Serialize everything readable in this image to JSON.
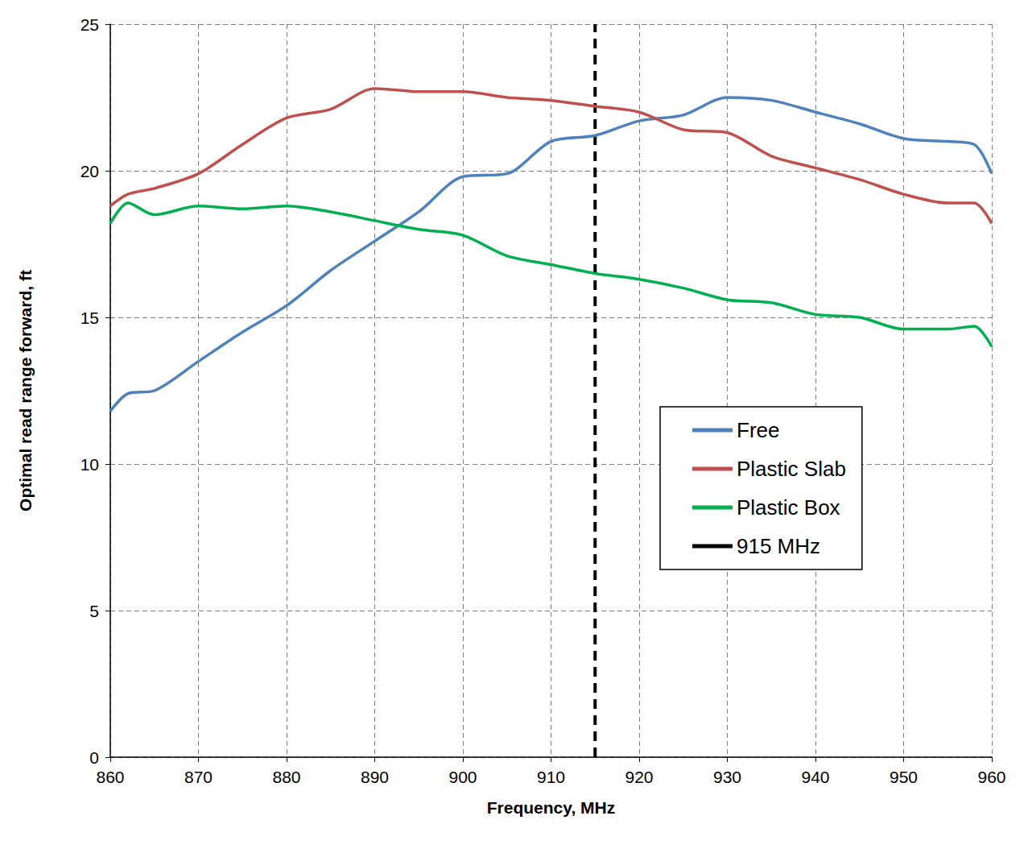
{
  "chart_data": {
    "type": "line",
    "x_label": "Frequency, MHz",
    "y_label": "Optimal read range forward, ft",
    "xlim": [
      860,
      960
    ],
    "xticks": [
      860,
      870,
      880,
      890,
      900,
      910,
      920,
      930,
      940,
      950,
      960
    ],
    "ylim": [
      0,
      25
    ],
    "yticks": [
      0,
      5,
      10,
      15,
      20,
      25
    ],
    "grid": true,
    "legend": "right",
    "series": [
      {
        "name": "Free",
        "color": "#4f81bd",
        "line_style": "solid",
        "x": [
          860,
          862,
          865,
          870,
          875,
          880,
          885,
          890,
          895,
          900,
          905,
          910,
          915,
          920,
          925,
          930,
          935,
          940,
          945,
          950,
          955,
          958,
          960
        ],
        "values": [
          11.8,
          12.4,
          12.5,
          13.5,
          14.5,
          15.4,
          16.6,
          17.6,
          18.6,
          19.8,
          19.9,
          21.0,
          21.2,
          21.7,
          21.9,
          22.5,
          22.4,
          22.0,
          21.6,
          21.1,
          21.0,
          20.9,
          19.9
        ]
      },
      {
        "name": "Plastic Slab",
        "color": "#c0504d",
        "line_style": "solid",
        "x": [
          860,
          862,
          865,
          870,
          875,
          880,
          885,
          890,
          895,
          900,
          905,
          910,
          915,
          920,
          925,
          930,
          935,
          940,
          945,
          950,
          955,
          958,
          960
        ],
        "values": [
          18.8,
          19.2,
          19.4,
          19.9,
          20.9,
          21.8,
          22.1,
          22.8,
          22.7,
          22.7,
          22.5,
          22.4,
          22.2,
          22.0,
          21.4,
          21.3,
          20.5,
          20.1,
          19.7,
          19.2,
          18.9,
          18.9,
          18.2
        ]
      },
      {
        "name": "Plastic Box",
        "color": "#00b050",
        "line_style": "solid",
        "x": [
          860,
          862,
          865,
          870,
          875,
          880,
          885,
          890,
          895,
          900,
          905,
          910,
          915,
          920,
          925,
          930,
          935,
          940,
          945,
          950,
          955,
          958,
          960
        ],
        "values": [
          18.2,
          18.9,
          18.5,
          18.8,
          18.7,
          18.8,
          18.6,
          18.3,
          18.0,
          17.8,
          17.1,
          16.8,
          16.5,
          16.3,
          16.0,
          15.6,
          15.5,
          15.1,
          15.0,
          14.6,
          14.6,
          14.7,
          14.0
        ]
      },
      {
        "name": "915 MHz",
        "color": "#000000",
        "line_style": "dashed",
        "x": [
          915,
          915
        ],
        "values": [
          0,
          25
        ]
      }
    ]
  }
}
